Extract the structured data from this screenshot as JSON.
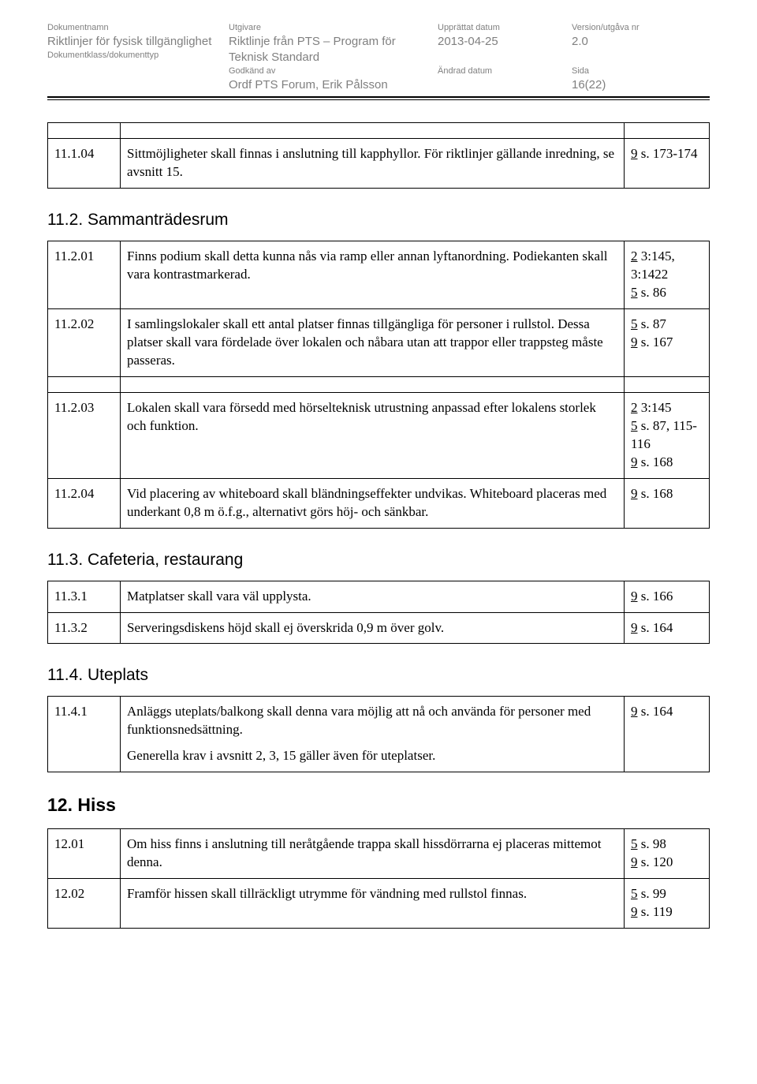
{
  "header": {
    "labels": {
      "docName": "Dokumentnamn",
      "publisher": "Utgivare",
      "created": "Upprättat datum",
      "version": "Version/utgåva nr",
      "docClass": "Dokumentklass/dokumenttyp",
      "approvedBy": "Godkänd av",
      "changed": "Ändrad datum",
      "page": "Sida"
    },
    "values": {
      "docName": "Riktlinjer för fysisk tillgänglighet",
      "publisher": "Riktlinje från PTS – Program för Teknisk Standard",
      "created": "2013-04-25",
      "version": " 2.0",
      "approvedBy": "Ordf PTS Forum, Erik Pålsson",
      "page": "16(22)"
    }
  },
  "tables": {
    "t1": {
      "rows": [
        {
          "id": "11.1.04",
          "text": "Sittmöjligheter skall finnas i anslutning till kapphyllor. För riktlinjer gällande inredning, se avsnitt 15.",
          "refs": [
            {
              "u": "9",
              "rest": " s. 173-174"
            }
          ]
        }
      ]
    },
    "sec112": {
      "title": "11.2. Sammanträdesrum"
    },
    "t2": {
      "rows": [
        {
          "id": "11.2.01",
          "text": "Finns podium skall detta kunna nås via ramp eller annan lyftanordning. Podiekanten skall vara kontrastmarkerad.",
          "refs": [
            {
              "u": "2",
              "rest": "  3:145, 3:1422"
            },
            {
              "u": "5",
              "rest": " s. 86"
            }
          ]
        },
        {
          "id": "11.2.02",
          "text": "I samlingslokaler skall ett antal platser finnas tillgängliga för personer i rullstol. Dessa platser skall vara fördelade över lokalen och nåbara utan att trappor eller trappsteg måste passeras.",
          "refs": [
            {
              "u": "5",
              "rest": " s. 87"
            },
            {
              "u": "9",
              "rest": " s. 167"
            }
          ]
        },
        {
          "id": "11.2.03",
          "text": "Lokalen skall vara försedd med hörselteknisk utrustning anpassad efter lokalens storlek och funktion.",
          "refs": [
            {
              "u": "2",
              "rest": "  3:145"
            },
            {
              "u": "5",
              "rest": " s. 87, 115-116"
            },
            {
              "u": "9",
              "rest": " s. 168"
            }
          ]
        },
        {
          "id": "11.2.04",
          "text": "Vid placering av whiteboard skall bländningseffekter undvikas. Whiteboard placeras med underkant 0,8 m ö.f.g., alternativt görs höj- och sänkbar.",
          "refs": [
            {
              "u": "9",
              "rest": " s. 168"
            }
          ]
        }
      ]
    },
    "sec113": {
      "title": "11.3. Cafeteria, restaurang"
    },
    "t3": {
      "rows": [
        {
          "id": "11.3.1",
          "text": "Matplatser skall vara väl upplysta.",
          "refs": [
            {
              "u": "9",
              "rest": " s. 166"
            }
          ]
        },
        {
          "id": "11.3.2",
          "text": "Serveringsdiskens höjd skall ej överskrida 0,9 m över golv.",
          "refs": [
            {
              "u": "9",
              "rest": " s. 164"
            }
          ]
        }
      ]
    },
    "sec114": {
      "title": "11.4. Uteplats"
    },
    "t4": {
      "rows": [
        {
          "id": "11.4.1",
          "text": "Anläggs uteplats/balkong skall denna vara möjlig att nå och använda för personer med funktionsnedsättning.",
          "text2": "Generella krav i avsnitt 2, 3, 15 gäller även för uteplatser.",
          "refs": [
            {
              "u": "9",
              "rest": " s. 164"
            }
          ]
        }
      ]
    },
    "sec12": {
      "title": "12. Hiss"
    },
    "t5": {
      "rows": [
        {
          "id": "12.01",
          "text": "Om hiss finns i anslutning till neråtgående trappa skall hissdörrarna ej placeras mittemot denna.",
          "refs": [
            {
              "u": "5",
              "rest": " s. 98"
            },
            {
              "u": "9",
              "rest": " s. 120"
            }
          ]
        },
        {
          "id": "12.02",
          "text": "Framför hissen skall tillräckligt utrymme för vändning med rullstol finnas.",
          "refs": [
            {
              "u": "5",
              "rest": " s. 99"
            },
            {
              "u": "9",
              "rest": " s. 119"
            }
          ]
        }
      ]
    }
  }
}
